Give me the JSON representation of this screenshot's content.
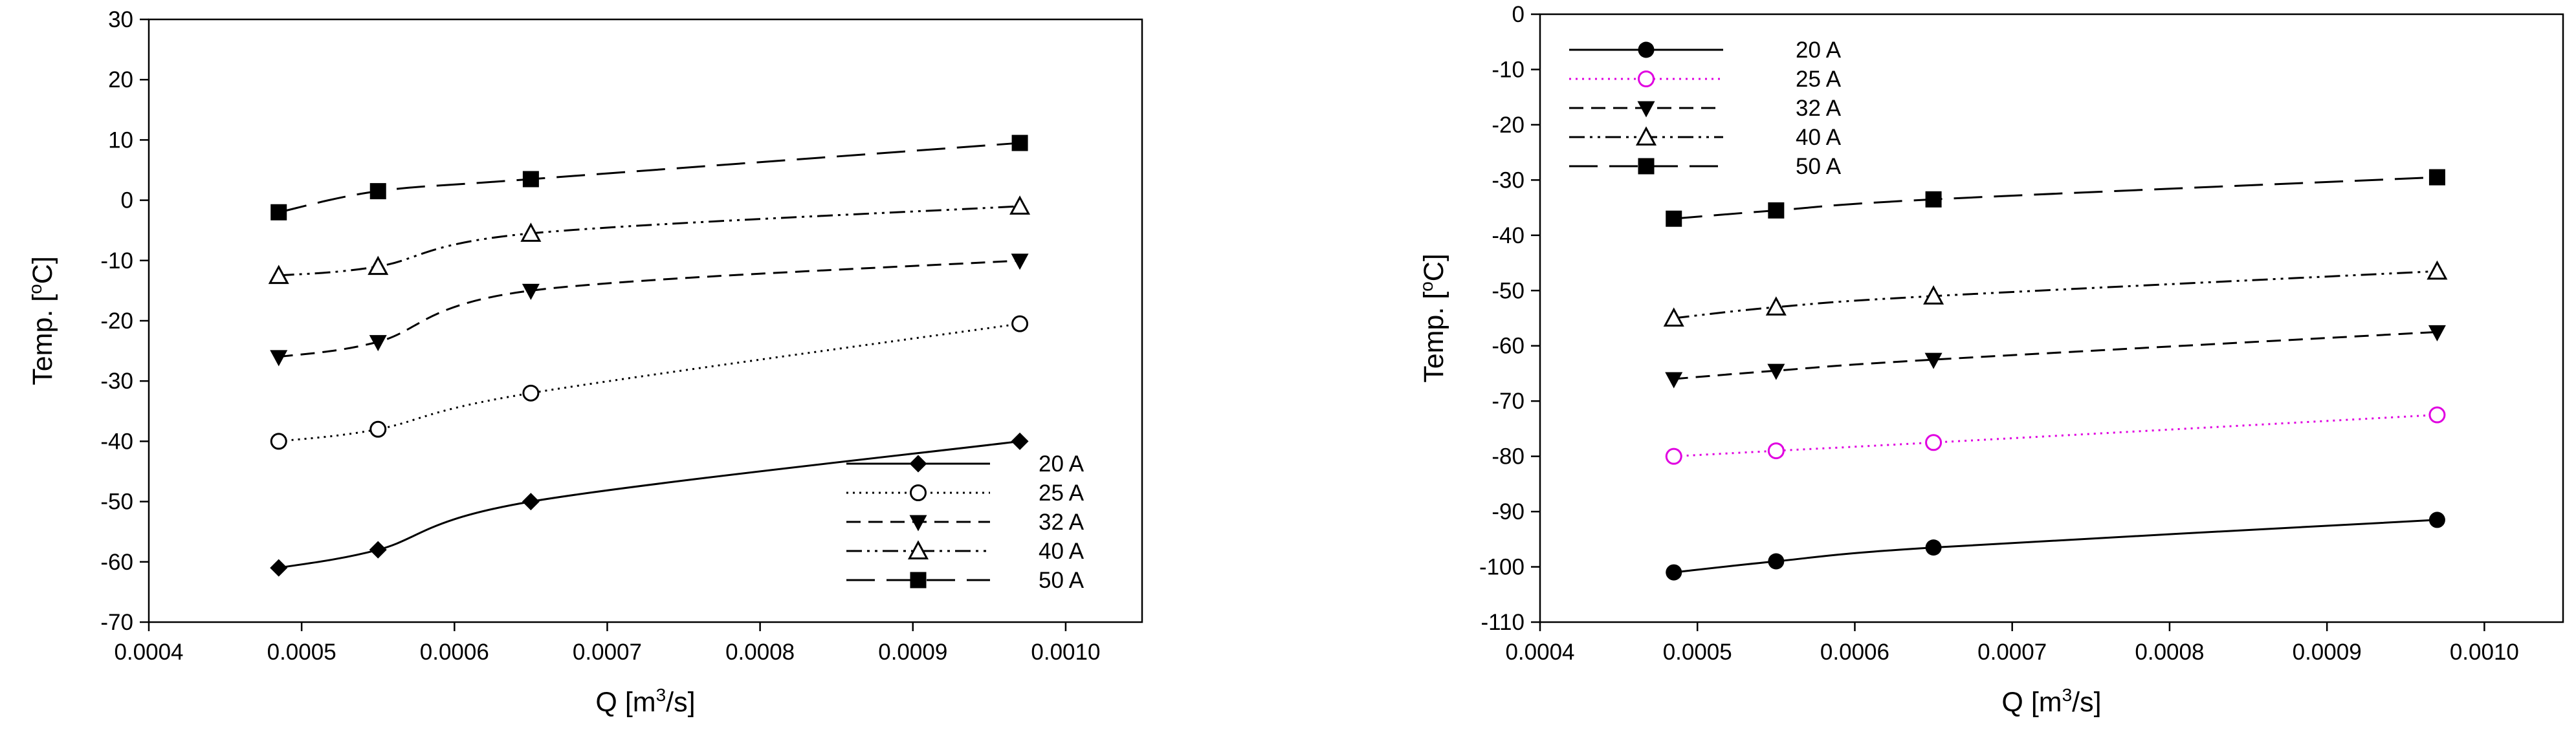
{
  "chart_data": [
    {
      "type": "line",
      "xlabel": "Q [m3/s]",
      "xlabel_main": "Q [m",
      "xlabel_sup": "3",
      "xlabel_tail": "/s]",
      "ylabel": "Temp. [oC]",
      "ylabel_main": "Temp. [",
      "ylabel_sup": "o",
      "ylabel_tail": "C]",
      "xlim": [
        0.0004,
        0.00105
      ],
      "ylim": [
        -70,
        30
      ],
      "xticks": [
        0.0004,
        0.0005,
        0.0006,
        0.0007,
        0.0008,
        0.0009,
        0.001
      ],
      "xtick_labels": [
        "0.0004",
        "0.0005",
        "0.0006",
        "0.0007",
        "0.0008",
        "0.0009",
        "0.0010"
      ],
      "yticks": [
        -70,
        -60,
        -50,
        -40,
        -30,
        -20,
        -10,
        0,
        10,
        20,
        30
      ],
      "yticks_labels": [
        "-70",
        "-60",
        "-50",
        "-40",
        "-30",
        "-20",
        "-10",
        "0",
        "10",
        "20",
        "30"
      ],
      "grid": false,
      "legend_position": "bottom-right",
      "x": [
        0.000485,
        0.00055,
        0.00065,
        0.00097
      ],
      "series": [
        {
          "name": "20 A",
          "values": [
            -61,
            -58,
            -50,
            -40
          ],
          "marker": "filled-diamond",
          "line": "solid",
          "color": "#000000"
        },
        {
          "name": "25 A",
          "values": [
            -40,
            -38,
            -32,
            -20.5
          ],
          "marker": "open-circle",
          "line": "dotted",
          "color": "#000000"
        },
        {
          "name": "32 A",
          "values": [
            -26,
            -23.5,
            -15,
            -10
          ],
          "marker": "filled-triangle-down",
          "line": "dashed",
          "color": "#000000"
        },
        {
          "name": "40 A",
          "values": [
            -12.5,
            -11,
            -5.5,
            -1
          ],
          "marker": "open-triangle-up",
          "line": "dash-dot-dot",
          "color": "#000000"
        },
        {
          "name": "50 A",
          "values": [
            -2,
            1.5,
            3.5,
            9.5
          ],
          "marker": "filled-square",
          "line": "long-dash",
          "color": "#000000"
        }
      ]
    },
    {
      "type": "line",
      "xlabel": "Q [m3/s]",
      "xlabel_main": "Q [m",
      "xlabel_sup": "3",
      "xlabel_tail": "/s]",
      "ylabel": "Temp. [oC]",
      "ylabel_main": "Temp. [",
      "ylabel_sup": "o",
      "ylabel_tail": "C]",
      "xlim": [
        0.0004,
        0.00105
      ],
      "ylim": [
        -110,
        0
      ],
      "xticks": [
        0.0004,
        0.0005,
        0.0006,
        0.0007,
        0.0008,
        0.0009,
        0.001
      ],
      "xtick_labels": [
        "0.0004",
        "0.0005",
        "0.0006",
        "0.0007",
        "0.0008",
        "0.0009",
        "0.0010"
      ],
      "yticks": [
        -110,
        -100,
        -90,
        -80,
        -70,
        -60,
        -50,
        -40,
        -30,
        -20,
        -10,
        0
      ],
      "yticks_labels": [
        "-110",
        "-100",
        "-90",
        "-80",
        "-70",
        "-60",
        "-50",
        "-40",
        "-30",
        "-20",
        "-10",
        "0"
      ],
      "grid": false,
      "legend_position": "top-left",
      "x": [
        0.000485,
        0.00055,
        0.00065,
        0.00097
      ],
      "series": [
        {
          "name": "20 A",
          "values": [
            -101,
            -99,
            -96.5,
            -91.5
          ],
          "marker": "filled-circle",
          "line": "solid",
          "color": "#000000"
        },
        {
          "name": "25 A",
          "values": [
            -80,
            -79,
            -77.5,
            -72.5
          ],
          "marker": "open-circle",
          "line": "dotted",
          "color": "#e000e0"
        },
        {
          "name": "32 A",
          "values": [
            -66,
            -64.5,
            -62.5,
            -57.5
          ],
          "marker": "filled-triangle-down",
          "line": "dashed",
          "color": "#000000"
        },
        {
          "name": "40 A",
          "values": [
            -55,
            -53,
            -51,
            -46.5
          ],
          "marker": "open-triangle-up",
          "line": "dash-dot-dot",
          "color": "#000000"
        },
        {
          "name": "50 A",
          "values": [
            -37,
            -35.5,
            -33.5,
            -29.5
          ],
          "marker": "filled-square",
          "line": "long-dash",
          "color": "#000000"
        }
      ]
    }
  ]
}
